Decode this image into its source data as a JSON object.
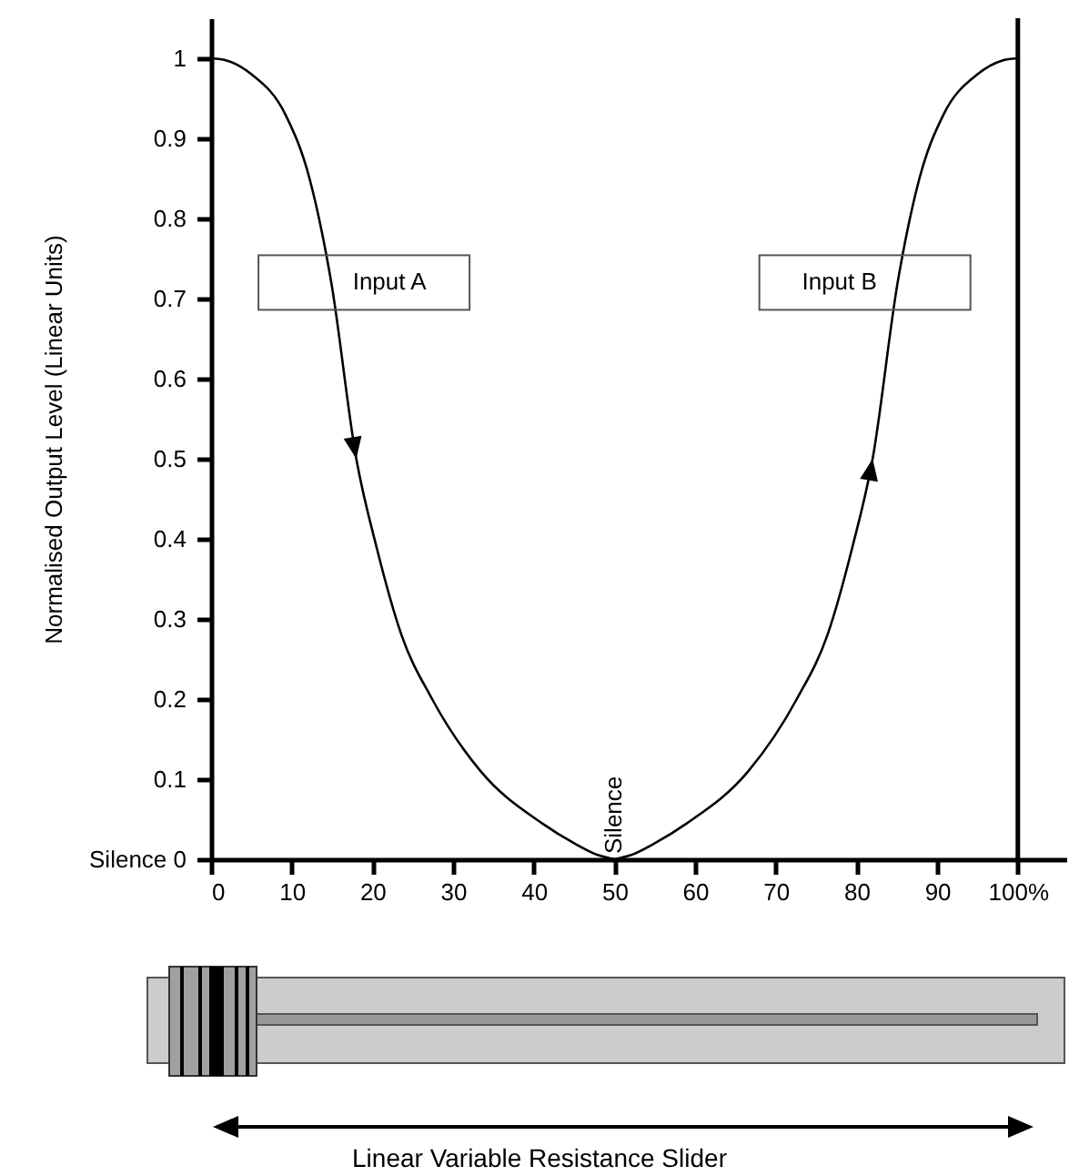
{
  "chart_data": {
    "type": "line",
    "ylabel": "Normalised Output Level (Linear Units)",
    "xlim": [
      0,
      106
    ],
    "ylim": [
      0,
      1.05
    ],
    "xticks": [
      0,
      10,
      20,
      30,
      40,
      50,
      60,
      70,
      80,
      90,
      {
        "value": 100,
        "label": "100%"
      }
    ],
    "yticks": [
      {
        "value": 0,
        "label": "Silence 0"
      },
      0.1,
      0.2,
      0.3,
      0.4,
      0.5,
      0.6,
      0.7,
      0.8,
      0.9,
      {
        "value": 1,
        "label": "1"
      }
    ],
    "series": [
      {
        "name": "Input A",
        "color": "#000000",
        "x": [
          0,
          2,
          5,
          9.2,
          12.2,
          14.9,
          18,
          20.5,
          23.6,
          27.4,
          33.4,
          41,
          45,
          48,
          50
        ],
        "values": [
          1,
          0.997,
          0.98,
          0.93,
          0.85,
          0.72,
          0.5,
          0.39,
          0.28,
          0.2,
          0.11,
          0.045,
          0.02,
          0.005,
          0
        ]
      },
      {
        "name": "Input B",
        "color": "#000000",
        "x": [
          50,
          52,
          55,
          59,
          66.6,
          72.6,
          76.4,
          79.5,
          82,
          85.1,
          87.8,
          90.8,
          95,
          98,
          100
        ],
        "values": [
          0,
          0.005,
          0.02,
          0.045,
          0.11,
          0.2,
          0.28,
          0.39,
          0.5,
          0.72,
          0.85,
          0.93,
          0.98,
          0.997,
          1
        ]
      }
    ],
    "ref_lines": [
      {
        "axis": "x",
        "value": 100,
        "label": null
      }
    ],
    "annotations": [
      {
        "text": "Silence",
        "x": 50,
        "y": 0
      },
      "Linear Variable Resistance Slider"
    ],
    "marker": "none",
    "line_style": "solid",
    "grid": false
  }
}
